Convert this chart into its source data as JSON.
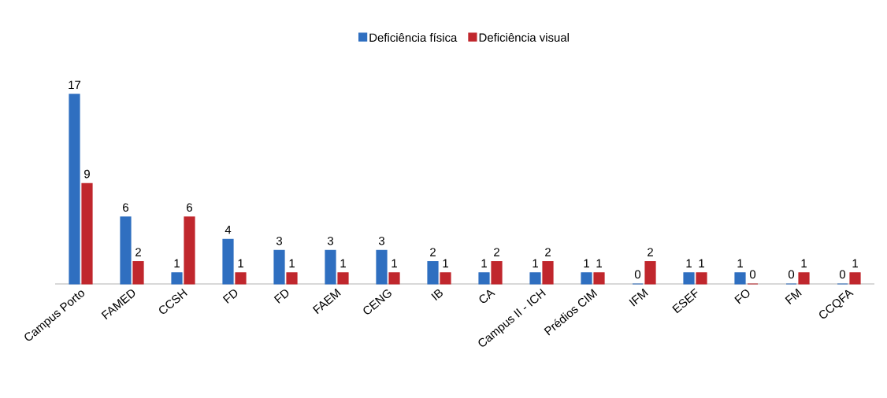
{
  "chart_data": {
    "type": "bar",
    "categories": [
      "Campus Porto",
      "FAMED",
      "CCSH",
      "FD",
      "FD",
      "FAEM",
      "CENG",
      "IB",
      "CA",
      "Campus II - ICH",
      "Prédios CIM",
      "IFM",
      "ESEF",
      "FO",
      "FM",
      "CCQFA"
    ],
    "series": [
      {
        "name": "Deficiência física",
        "color": "#2f6fc0",
        "values": [
          17,
          6,
          1,
          4,
          3,
          3,
          3,
          2,
          1,
          1,
          1,
          0,
          1,
          1,
          0,
          0
        ]
      },
      {
        "name": "Deficiência visual",
        "color": "#c0272d",
        "values": [
          9,
          2,
          6,
          1,
          1,
          1,
          1,
          1,
          2,
          2,
          1,
          2,
          1,
          0,
          1,
          1
        ]
      }
    ],
    "data_labels": true,
    "legend": "top"
  }
}
